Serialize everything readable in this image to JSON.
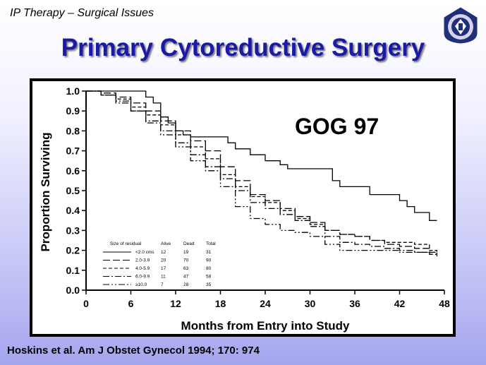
{
  "header": {
    "label": "IP Therapy – Surgical Issues"
  },
  "slide": {
    "title": "Primary Cytoreductive Surgery"
  },
  "logo": {
    "icon": "seal-icon",
    "colors": [
      "#1f2f7a",
      "#d7d2ec",
      "#ffffff"
    ]
  },
  "citation": "Hoskins et al. Am J Obstet Gynecol 1994; 170: 974",
  "chart_data": {
    "type": "line",
    "annotation": "GOG 97",
    "xlabel": "Months from Entry into Study",
    "ylabel": "Proportion Surviving",
    "xlim": [
      0,
      48
    ],
    "ylim": [
      0,
      1
    ],
    "xticks": [
      "0",
      "6",
      "12",
      "18",
      "24",
      "30",
      "36",
      "42",
      "48"
    ],
    "yticks": [
      "0.0",
      "0.1",
      "0.2",
      "0.3",
      "0.4",
      "0.5",
      "0.6",
      "0.7",
      "0.8",
      "0.9",
      "1.0"
    ],
    "grid": false,
    "legend": {
      "placement": "bottom-left",
      "headers": [
        "Size of residual",
        "Alive",
        "Dead",
        "Total"
      ],
      "rows": [
        [
          "<2.0 cms",
          "12",
          "19",
          "31"
        ],
        [
          "2.0-3.9",
          "20",
          "70",
          "90"
        ],
        [
          "4.0-5.9",
          "17",
          "63",
          "80"
        ],
        [
          "6.0-9.9",
          "11",
          "47",
          "58"
        ],
        [
          "≥10.0",
          "7",
          "28",
          "35"
        ]
      ]
    },
    "series": [
      {
        "name": "<2.0 cms",
        "dash": "solid",
        "x": [
          0,
          8,
          8,
          9,
          10,
          11,
          12,
          13,
          14,
          17,
          19,
          20,
          21,
          22,
          23,
          24,
          25,
          26,
          27,
          30,
          33,
          34,
          36,
          38,
          40,
          42,
          43,
          44,
          46,
          47
        ],
        "y": [
          1.0,
          1.0,
          0.97,
          0.94,
          0.87,
          0.84,
          0.8,
          0.78,
          0.77,
          0.77,
          0.74,
          0.71,
          0.71,
          0.68,
          0.68,
          0.65,
          0.65,
          0.63,
          0.61,
          0.61,
          0.55,
          0.52,
          0.52,
          0.48,
          0.48,
          0.45,
          0.42,
          0.39,
          0.35,
          0.35
        ]
      },
      {
        "name": "2.0-3.9",
        "dash": "long-dash",
        "x": [
          0,
          2,
          4,
          6,
          8,
          10,
          12,
          14,
          16,
          18,
          20,
          22,
          24,
          26,
          28,
          30,
          32,
          34,
          36,
          38,
          40,
          42,
          44,
          46,
          47
        ],
        "y": [
          1.0,
          0.99,
          0.97,
          0.94,
          0.9,
          0.85,
          0.8,
          0.75,
          0.7,
          0.62,
          0.55,
          0.48,
          0.45,
          0.41,
          0.37,
          0.34,
          0.3,
          0.28,
          0.27,
          0.25,
          0.23,
          0.22,
          0.21,
          0.19,
          0.18
        ]
      },
      {
        "name": "4.0-5.9",
        "dash": "short-dash",
        "x": [
          0,
          2,
          4,
          6,
          8,
          10,
          12,
          14,
          16,
          18,
          20,
          22,
          24,
          26,
          28,
          30,
          32,
          34,
          36,
          38,
          40,
          42,
          44,
          46,
          47
        ],
        "y": [
          1.0,
          0.98,
          0.96,
          0.92,
          0.88,
          0.83,
          0.78,
          0.72,
          0.66,
          0.58,
          0.52,
          0.47,
          0.44,
          0.4,
          0.36,
          0.33,
          0.3,
          0.28,
          0.27,
          0.25,
          0.24,
          0.24,
          0.23,
          0.2,
          0.17
        ]
      },
      {
        "name": "6.0-9.9",
        "dash": "dash-dot",
        "x": [
          0,
          2,
          4,
          6,
          8,
          10,
          12,
          14,
          16,
          18,
          20,
          22,
          24,
          26,
          28,
          30,
          32,
          34,
          36,
          38,
          40,
          42,
          44,
          46,
          47
        ],
        "y": [
          1.0,
          0.98,
          0.94,
          0.9,
          0.85,
          0.8,
          0.74,
          0.68,
          0.62,
          0.56,
          0.5,
          0.44,
          0.41,
          0.38,
          0.35,
          0.32,
          0.27,
          0.24,
          0.23,
          0.22,
          0.21,
          0.2,
          0.19,
          0.18,
          0.18
        ]
      },
      {
        "name": "≥10.0",
        "dash": "dash-dot-dot",
        "x": [
          0,
          2,
          4,
          6,
          8,
          10,
          12,
          14,
          16,
          18,
          20,
          22,
          24,
          26,
          28,
          30,
          32,
          34,
          36,
          38,
          40,
          42,
          44,
          46,
          47
        ],
        "y": [
          1.0,
          0.98,
          0.95,
          0.9,
          0.84,
          0.78,
          0.72,
          0.65,
          0.6,
          0.52,
          0.42,
          0.36,
          0.33,
          0.3,
          0.29,
          0.27,
          0.23,
          0.2,
          0.2,
          0.2,
          0.2,
          0.19,
          0.19,
          0.19,
          0.18
        ]
      }
    ]
  }
}
